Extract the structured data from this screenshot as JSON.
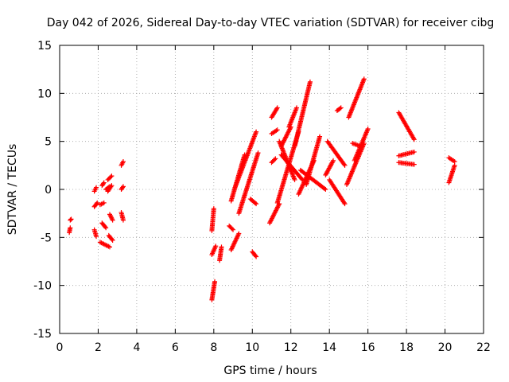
{
  "chart_data": {
    "type": "scatter",
    "title": "Day 042 of 2026, Sidereal Day-to-day VTEC variation (SDTVAR) for receiver cibg",
    "xlabel": "GPS time / hours",
    "ylabel": "SDTVAR / TECUs",
    "xlim": [
      0,
      22
    ],
    "ylim": [
      -15,
      15
    ],
    "xticks": [
      0,
      2,
      4,
      6,
      8,
      10,
      12,
      14,
      16,
      18,
      20,
      22
    ],
    "yticks": [
      -15,
      -10,
      -5,
      0,
      5,
      10,
      15
    ],
    "grid": true,
    "marker": "+",
    "color": "#ff0000",
    "segments": [
      {
        "x": [
          0.5,
          0.55
        ],
        "y": [
          -4.5,
          -4.0
        ]
      },
      {
        "x": [
          0.55,
          0.6
        ],
        "y": [
          -3.2,
          -3.1
        ]
      },
      {
        "x": [
          1.8,
          1.9
        ],
        "y": [
          -0.2,
          0.2
        ]
      },
      {
        "x": [
          1.8,
          1.95
        ],
        "y": [
          -1.8,
          -1.4
        ]
      },
      {
        "x": [
          1.8,
          1.9
        ],
        "y": [
          -4.2,
          -4.9
        ]
      },
      {
        "x": [
          2.1,
          2.3
        ],
        "y": [
          -1.6,
          -1.4
        ]
      },
      {
        "x": [
          2.2,
          2.3
        ],
        "y": [
          0.4,
          0.7
        ]
      },
      {
        "x": [
          2.2,
          2.4
        ],
        "y": [
          -3.5,
          -4.0
        ]
      },
      {
        "x": [
          2.1,
          2.6
        ],
        "y": [
          -5.5,
          -6.0
        ]
      },
      {
        "x": [
          2.4,
          2.6
        ],
        "y": [
          0.0,
          0.3
        ]
      },
      {
        "x": [
          2.5,
          2.7
        ],
        "y": [
          1.0,
          1.4
        ]
      },
      {
        "x": [
          2.5,
          2.7
        ],
        "y": [
          -0.2,
          0.4
        ]
      },
      {
        "x": [
          2.6,
          2.75
        ],
        "y": [
          -2.6,
          -3.2
        ]
      },
      {
        "x": [
          2.55,
          2.75
        ],
        "y": [
          -4.8,
          -5.3
        ]
      },
      {
        "x": [
          3.2,
          3.3
        ],
        "y": [
          2.5,
          2.9
        ]
      },
      {
        "x": [
          3.2,
          3.3
        ],
        "y": [
          0.0,
          0.3
        ]
      },
      {
        "x": [
          3.2,
          3.3
        ],
        "y": [
          -2.4,
          -3.2
        ]
      },
      {
        "x": [
          7.9,
          8.05
        ],
        "y": [
          -11.5,
          -9.6
        ]
      },
      {
        "x": [
          7.9,
          8.0
        ],
        "y": [
          -4.3,
          -2.0
        ]
      },
      {
        "x": [
          7.9,
          8.1
        ],
        "y": [
          -6.8,
          -5.9
        ]
      },
      {
        "x": [
          8.3,
          8.4
        ],
        "y": [
          -7.4,
          -6.0
        ]
      },
      {
        "x": [
          8.8,
          9.0
        ],
        "y": [
          -3.8,
          -4.2
        ]
      },
      {
        "x": [
          8.9,
          9.3
        ],
        "y": [
          -6.3,
          -4.6
        ]
      },
      {
        "x": [
          8.9,
          9.6
        ],
        "y": [
          -1.2,
          3.6
        ]
      },
      {
        "x": [
          9.1,
          10.2
        ],
        "y": [
          0.2,
          6.0
        ]
      },
      {
        "x": [
          9.3,
          10.3
        ],
        "y": [
          -2.5,
          3.8
        ]
      },
      {
        "x": [
          9.9,
          10.2
        ],
        "y": [
          -1.0,
          -1.5
        ]
      },
      {
        "x": [
          10.0,
          10.2
        ],
        "y": [
          -6.5,
          -7.0
        ]
      },
      {
        "x": [
          10.9,
          11.4
        ],
        "y": [
          -3.5,
          -1.5
        ]
      },
      {
        "x": [
          11.0,
          11.2
        ],
        "y": [
          2.8,
          3.2
        ]
      },
      {
        "x": [
          11.0,
          11.3
        ],
        "y": [
          5.8,
          6.2
        ]
      },
      {
        "x": [
          11.0,
          11.3
        ],
        "y": [
          7.5,
          8.5
        ]
      },
      {
        "x": [
          11.3,
          12.4
        ],
        "y": [
          -1.4,
          6.0
        ]
      },
      {
        "x": [
          11.4,
          12.2
        ],
        "y": [
          5.0,
          1.0
        ]
      },
      {
        "x": [
          11.5,
          12.0
        ],
        "y": [
          4.5,
          6.5
        ]
      },
      {
        "x": [
          11.5,
          12.6
        ],
        "y": [
          3.6,
          1.0
        ]
      },
      {
        "x": [
          11.9,
          12.3
        ],
        "y": [
          6.5,
          8.5
        ]
      },
      {
        "x": [
          12.2,
          13.0
        ],
        "y": [
          4.5,
          11.2
        ]
      },
      {
        "x": [
          12.4,
          13.2
        ],
        "y": [
          -0.5,
          3.0
        ]
      },
      {
        "x": [
          12.8,
          13.5
        ],
        "y": [
          0.5,
          5.5
        ]
      },
      {
        "x": [
          12.5,
          13.8
        ],
        "y": [
          2.0,
          0.0
        ]
      },
      {
        "x": [
          13.8,
          14.2
        ],
        "y": [
          1.5,
          3.0
        ]
      },
      {
        "x": [
          13.9,
          14.8
        ],
        "y": [
          5.0,
          2.5
        ]
      },
      {
        "x": [
          14.4,
          14.6
        ],
        "y": [
          8.2,
          8.5
        ]
      },
      {
        "x": [
          14.0,
          14.8
        ],
        "y": [
          1.0,
          -1.5
        ]
      },
      {
        "x": [
          15.0,
          15.8
        ],
        "y": [
          7.5,
          11.5
        ]
      },
      {
        "x": [
          14.9,
          15.8
        ],
        "y": [
          0.5,
          4.8
        ]
      },
      {
        "x": [
          15.3,
          16.0
        ],
        "y": [
          3.0,
          6.3
        ]
      },
      {
        "x": [
          15.2,
          15.6
        ],
        "y": [
          4.8,
          4.5
        ]
      },
      {
        "x": [
          17.6,
          18.4
        ],
        "y": [
          8.0,
          5.2
        ]
      },
      {
        "x": [
          17.6,
          18.4
        ],
        "y": [
          3.5,
          3.9
        ]
      },
      {
        "x": [
          17.6,
          18.4
        ],
        "y": [
          2.8,
          2.6
        ]
      },
      {
        "x": [
          20.2,
          20.5
        ],
        "y": [
          3.3,
          2.9
        ]
      },
      {
        "x": [
          20.2,
          20.5
        ],
        "y": [
          0.7,
          2.5
        ]
      }
    ]
  }
}
